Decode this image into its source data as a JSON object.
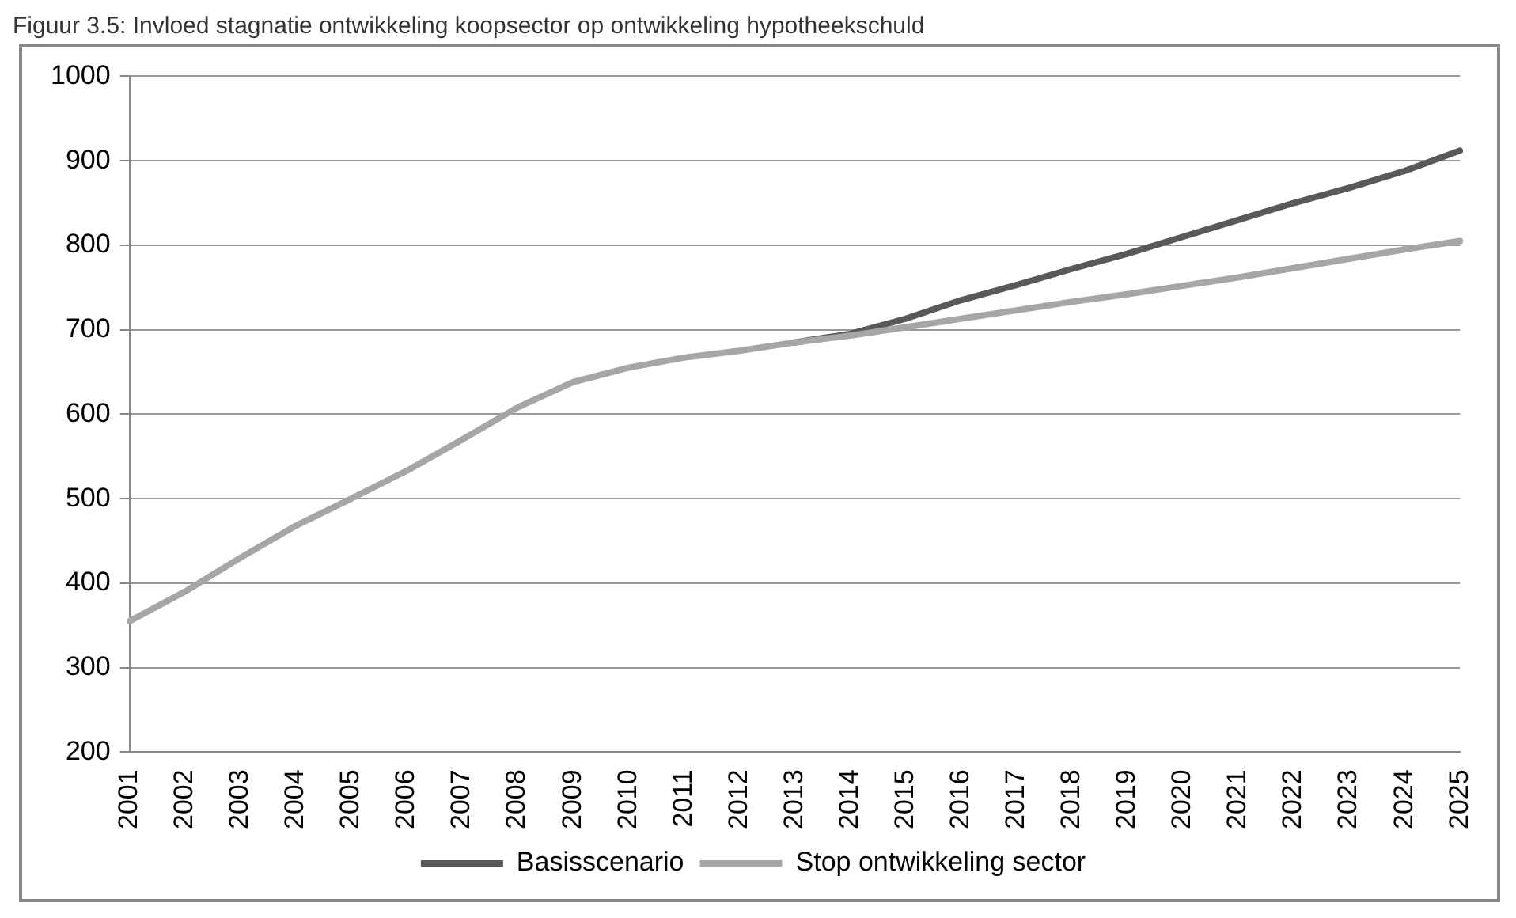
{
  "chart_data": {
    "type": "line",
    "title": "Figuur 3.5: Invloed stagnatie ontwikkeling koopsector op ontwikkeling hypotheekschuld",
    "categories": [
      "2001",
      "2002",
      "2003",
      "2004",
      "2005",
      "2006",
      "2007",
      "2008",
      "2009",
      "2010",
      "2011",
      "2012",
      "2013",
      "2014",
      "2015",
      "2016",
      "2017",
      "2018",
      "2019",
      "2020",
      "2021",
      "2022",
      "2023",
      "2024",
      "2025"
    ],
    "series": [
      {
        "name": "Basisscenario",
        "color": "#595959",
        "values": [
          null,
          null,
          null,
          null,
          null,
          null,
          null,
          null,
          null,
          null,
          null,
          null,
          685,
          695,
          713,
          735,
          753,
          772,
          790,
          810,
          830,
          850,
          868,
          888,
          912
        ]
      },
      {
        "name": "Stop ontwikkeling sector",
        "color": "#a6a6a6",
        "values": [
          355,
          390,
          430,
          468,
          500,
          533,
          570,
          608,
          638,
          655,
          667,
          675,
          685,
          693,
          703,
          713,
          723,
          733,
          742,
          752,
          762,
          773,
          784,
          795,
          805
        ]
      }
    ],
    "ylim": [
      200,
      1000
    ],
    "yticks": [
      200,
      300,
      400,
      500,
      600,
      700,
      800,
      900,
      1000
    ],
    "grid": "y",
    "legend": "bottom",
    "marker": "none",
    "line_style": "solid"
  }
}
